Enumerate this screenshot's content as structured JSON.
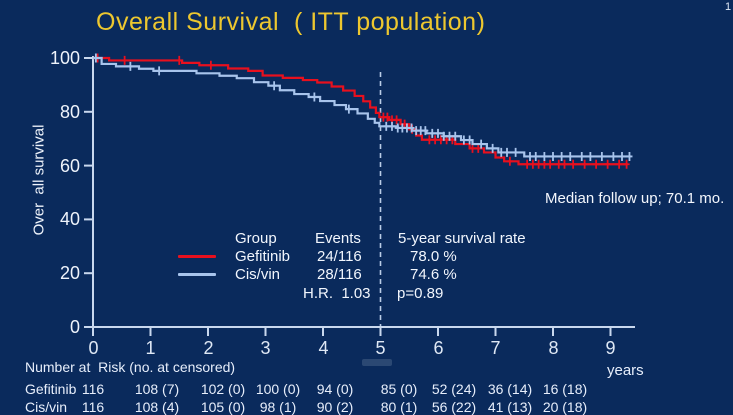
{
  "slide": {
    "title": "Overall Survival  ( ITT population)",
    "page_number": "1",
    "median_followup": "Median follow up; 70.1 mo."
  },
  "colors": {
    "background": "#0a2a5c",
    "title": "#edc72f",
    "text": "#f2f6fd",
    "axis": "#c9d8ee",
    "gefitinib": "#e8101e",
    "cisvin": "#a8c4ec"
  },
  "chart_data": {
    "type": "line",
    "subtype": "kaplan-meier-step",
    "title": "Overall Survival ( ITT population)",
    "xlabel": "years",
    "ylabel": "Over  all survival",
    "xlim": [
      0,
      9.5
    ],
    "ylim": [
      0,
      100
    ],
    "grid": false,
    "x_ticks": [
      0,
      1,
      2,
      3,
      4,
      5,
      6,
      7,
      8,
      9
    ],
    "y_ticks": [
      100,
      80,
      60,
      40,
      20,
      0
    ],
    "reference_line": {
      "x": 5,
      "style": "dashed",
      "meaning": "5-year landmark"
    },
    "series": [
      {
        "id": "gefitinib",
        "name": "Gefitinib",
        "color": "#e8101e",
        "events": "24/116",
        "five_year_survival_pct": 78.0,
        "points": [
          [
            0,
            100
          ],
          [
            0.28,
            99.1
          ],
          [
            1.55,
            98.2
          ],
          [
            1.85,
            97.3
          ],
          [
            2.35,
            96.1
          ],
          [
            2.7,
            95.2
          ],
          [
            2.95,
            93.5
          ],
          [
            3.3,
            92.6
          ],
          [
            3.65,
            91.8
          ],
          [
            3.9,
            90.9
          ],
          [
            4.15,
            89.4
          ],
          [
            4.35,
            87.9
          ],
          [
            4.55,
            85.9
          ],
          [
            4.7,
            83.9
          ],
          [
            4.82,
            81.6
          ],
          [
            4.92,
            79.6
          ],
          [
            4.98,
            78.0
          ],
          [
            5.15,
            77.0
          ],
          [
            5.35,
            75.4
          ],
          [
            5.5,
            73.5
          ],
          [
            5.62,
            71.2
          ],
          [
            5.72,
            69.6
          ],
          [
            6.3,
            68.0
          ],
          [
            6.55,
            66.4
          ],
          [
            6.8,
            64.9
          ],
          [
            7.0,
            63.0
          ],
          [
            7.15,
            61.6
          ],
          [
            7.4,
            60.5
          ],
          [
            9.3,
            60.5
          ]
        ],
        "censor_marks": [
          0.08,
          0.55,
          1.5,
          2.05,
          5.05,
          5.12,
          5.2,
          5.28,
          5.42,
          5.55,
          5.85,
          5.95,
          6.05,
          6.15,
          6.25,
          6.6,
          6.7,
          7.25,
          7.55,
          7.65,
          7.75,
          7.85,
          7.95,
          8.1,
          8.2,
          8.35,
          8.55,
          8.75,
          8.95,
          9.15,
          9.28
        ]
      },
      {
        "id": "cisvin",
        "name": "Cis/vin",
        "color": "#a8c4ec",
        "events": "28/116",
        "five_year_survival_pct": 74.6,
        "points": [
          [
            0,
            100
          ],
          [
            0.15,
            97.8
          ],
          [
            0.4,
            96.9
          ],
          [
            0.8,
            96.0
          ],
          [
            1.05,
            95.2
          ],
          [
            1.8,
            94.3
          ],
          [
            2.2,
            93.4
          ],
          [
            2.5,
            92.5
          ],
          [
            2.8,
            91.0
          ],
          [
            3.05,
            89.7
          ],
          [
            3.25,
            88.0
          ],
          [
            3.5,
            86.6
          ],
          [
            3.75,
            85.5
          ],
          [
            3.95,
            84.0
          ],
          [
            4.2,
            82.5
          ],
          [
            4.4,
            81.0
          ],
          [
            4.6,
            79.4
          ],
          [
            4.78,
            77.4
          ],
          [
            4.9,
            75.9
          ],
          [
            4.98,
            74.6
          ],
          [
            5.3,
            74.0
          ],
          [
            5.55,
            73.0
          ],
          [
            5.8,
            72.0
          ],
          [
            6.1,
            70.9
          ],
          [
            6.4,
            69.5
          ],
          [
            6.6,
            68.0
          ],
          [
            6.85,
            66.4
          ],
          [
            7.05,
            64.9
          ],
          [
            7.5,
            63.4
          ],
          [
            9.35,
            63.4
          ]
        ],
        "censor_marks": [
          0.05,
          0.65,
          1.15,
          3.15,
          3.85,
          4.45,
          5.1,
          5.2,
          5.3,
          5.38,
          5.46,
          5.54,
          5.62,
          5.7,
          5.78,
          5.9,
          6.0,
          6.1,
          6.2,
          6.3,
          6.45,
          6.55,
          6.75,
          6.95,
          7.1,
          7.2,
          7.35,
          7.6,
          7.7,
          7.85,
          8.0,
          8.15,
          8.3,
          8.5,
          8.65,
          8.85,
          9.05,
          9.2,
          9.33
        ]
      }
    ]
  },
  "legend": {
    "header": {
      "group": "Group",
      "events": "Events",
      "rate": "5-year survival rate"
    },
    "rows": [
      {
        "group": "Gefitinib",
        "events": "24/116",
        "rate": "78.0 %"
      },
      {
        "group": "Cis/vin",
        "events": "28/116",
        "rate": "74.6 %"
      }
    ],
    "hr": "H.R.  1.03",
    "p": "p=0.89"
  },
  "risk_table": {
    "caption": "Number at  Risk (no. at censored)",
    "rows": [
      {
        "label": "Gefitinib",
        "values": [
          "116",
          "108 (7)",
          "102 (0)",
          "100 (0)",
          "94 (0)",
          "85 (0)",
          "52 (24)",
          "36 (14)",
          "16 (18)"
        ]
      },
      {
        "label": "Cis/vin",
        "values": [
          "116",
          "108 (4)",
          "105 (0)",
          "98 (1)",
          "90 (2)",
          "80 (1)",
          "56 (22)",
          "41 (13)",
          "20 (18)"
        ]
      }
    ]
  }
}
